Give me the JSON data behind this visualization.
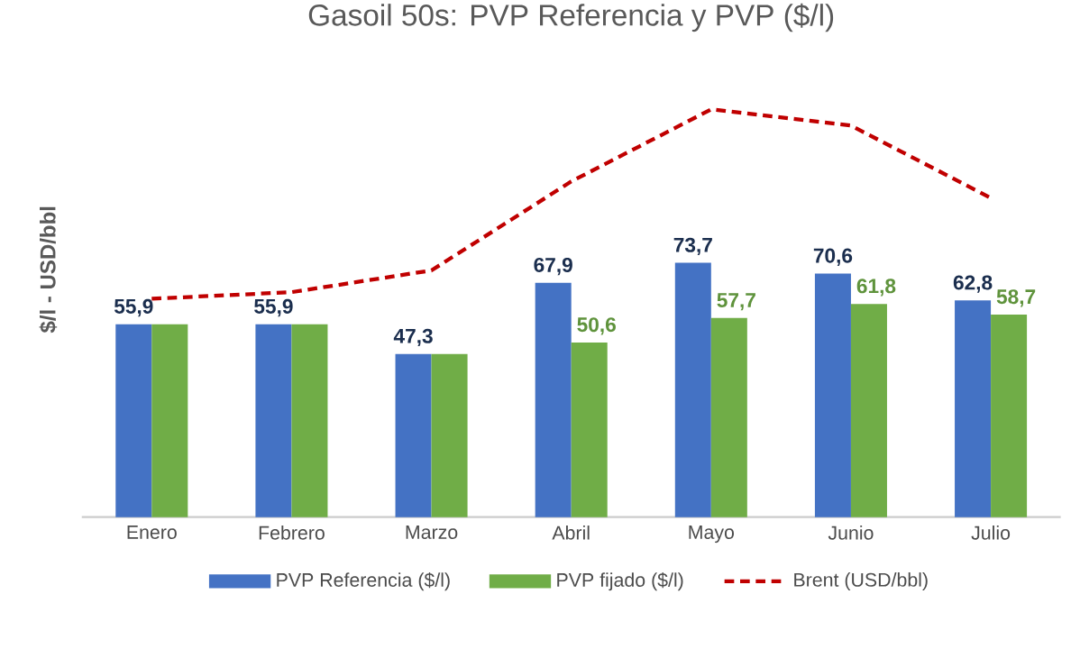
{
  "chart_data": {
    "type": "bar",
    "title": "Gasoil 50s: PVP Referencia y PVP ($/l)",
    "ylabel": "$/l - USD/bbl",
    "categories": [
      "Enero",
      "Febrero",
      "Marzo",
      "Abril",
      "Mayo",
      "Junio",
      "Julio"
    ],
    "tick_labels": "x",
    "legend": "bottom",
    "series": [
      {
        "name": "PVP Referencia ($/l)",
        "color": "#4472c4",
        "values": [
          55.9,
          55.9,
          47.3,
          67.9,
          73.7,
          70.6,
          62.8
        ],
        "value_labels": [
          "55,9",
          "55,9",
          "47,3",
          "67,9",
          "73,7",
          "70,6",
          "62,8"
        ]
      },
      {
        "name": "PVP fijado ($/l)",
        "color": "#70ad47",
        "values": [
          55.9,
          55.9,
          47.3,
          50.6,
          57.7,
          61.8,
          58.7
        ],
        "value_labels": [
          null,
          null,
          null,
          "50,6",
          "57,7",
          "61,8",
          "58,7"
        ]
      },
      {
        "name": "Brent (USD/bbl)",
        "type": "line",
        "color": "#c00000",
        "line_style": "dashed",
        "marker": "none",
        "values": [
          63.3,
          65.2,
          71.5,
          97.3,
          118.2,
          113.5,
          92.5
        ]
      }
    ]
  }
}
